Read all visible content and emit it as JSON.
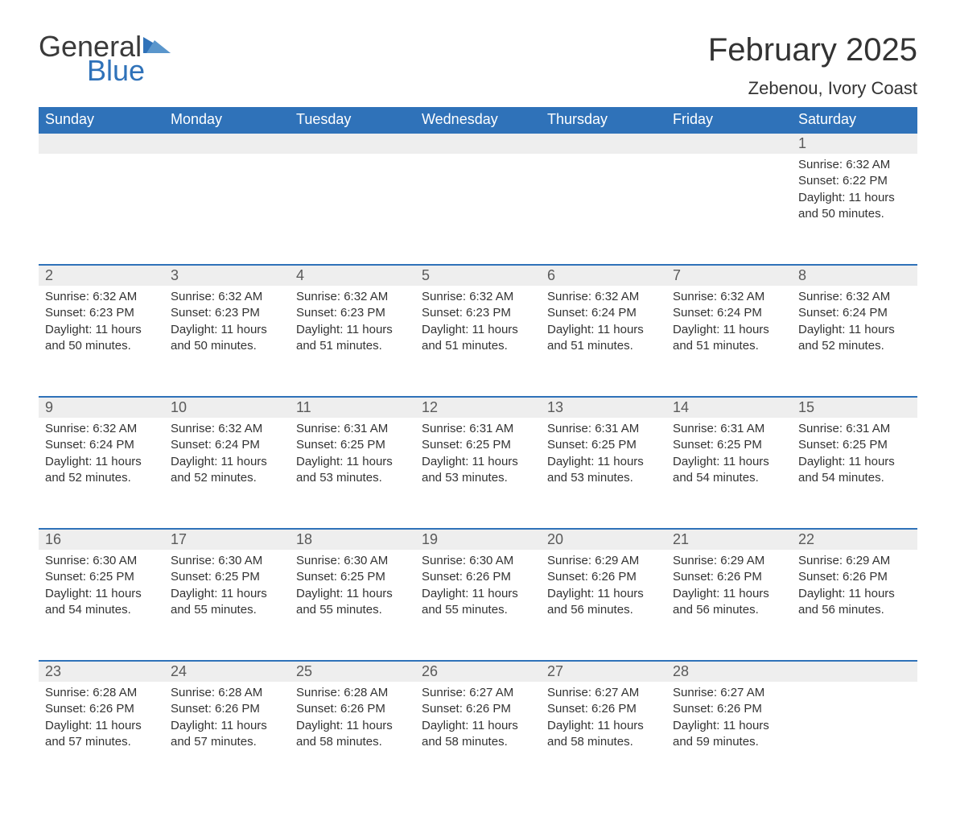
{
  "logo": {
    "general": "General",
    "blue": "Blue",
    "brand_color": "#2f72b9"
  },
  "title": "February 2025",
  "location": "Zebenou, Ivory Coast",
  "colors": {
    "header_bg": "#2f72b9",
    "header_text": "#ffffff",
    "daynum_bg": "#eeeeee",
    "row_divider": "#2f72b9",
    "body_text": "#333333",
    "page_bg": "#ffffff"
  },
  "day_headers": [
    "Sunday",
    "Monday",
    "Tuesday",
    "Wednesday",
    "Thursday",
    "Friday",
    "Saturday"
  ],
  "weeks": [
    [
      null,
      null,
      null,
      null,
      null,
      null,
      {
        "n": "1",
        "sunrise": "6:32 AM",
        "sunset": "6:22 PM",
        "daylight": "11 hours and 50 minutes."
      }
    ],
    [
      {
        "n": "2",
        "sunrise": "6:32 AM",
        "sunset": "6:23 PM",
        "daylight": "11 hours and 50 minutes."
      },
      {
        "n": "3",
        "sunrise": "6:32 AM",
        "sunset": "6:23 PM",
        "daylight": "11 hours and 50 minutes."
      },
      {
        "n": "4",
        "sunrise": "6:32 AM",
        "sunset": "6:23 PM",
        "daylight": "11 hours and 51 minutes."
      },
      {
        "n": "5",
        "sunrise": "6:32 AM",
        "sunset": "6:23 PM",
        "daylight": "11 hours and 51 minutes."
      },
      {
        "n": "6",
        "sunrise": "6:32 AM",
        "sunset": "6:24 PM",
        "daylight": "11 hours and 51 minutes."
      },
      {
        "n": "7",
        "sunrise": "6:32 AM",
        "sunset": "6:24 PM",
        "daylight": "11 hours and 51 minutes."
      },
      {
        "n": "8",
        "sunrise": "6:32 AM",
        "sunset": "6:24 PM",
        "daylight": "11 hours and 52 minutes."
      }
    ],
    [
      {
        "n": "9",
        "sunrise": "6:32 AM",
        "sunset": "6:24 PM",
        "daylight": "11 hours and 52 minutes."
      },
      {
        "n": "10",
        "sunrise": "6:32 AM",
        "sunset": "6:24 PM",
        "daylight": "11 hours and 52 minutes."
      },
      {
        "n": "11",
        "sunrise": "6:31 AM",
        "sunset": "6:25 PM",
        "daylight": "11 hours and 53 minutes."
      },
      {
        "n": "12",
        "sunrise": "6:31 AM",
        "sunset": "6:25 PM",
        "daylight": "11 hours and 53 minutes."
      },
      {
        "n": "13",
        "sunrise": "6:31 AM",
        "sunset": "6:25 PM",
        "daylight": "11 hours and 53 minutes."
      },
      {
        "n": "14",
        "sunrise": "6:31 AM",
        "sunset": "6:25 PM",
        "daylight": "11 hours and 54 minutes."
      },
      {
        "n": "15",
        "sunrise": "6:31 AM",
        "sunset": "6:25 PM",
        "daylight": "11 hours and 54 minutes."
      }
    ],
    [
      {
        "n": "16",
        "sunrise": "6:30 AM",
        "sunset": "6:25 PM",
        "daylight": "11 hours and 54 minutes."
      },
      {
        "n": "17",
        "sunrise": "6:30 AM",
        "sunset": "6:25 PM",
        "daylight": "11 hours and 55 minutes."
      },
      {
        "n": "18",
        "sunrise": "6:30 AM",
        "sunset": "6:25 PM",
        "daylight": "11 hours and 55 minutes."
      },
      {
        "n": "19",
        "sunrise": "6:30 AM",
        "sunset": "6:26 PM",
        "daylight": "11 hours and 55 minutes."
      },
      {
        "n": "20",
        "sunrise": "6:29 AM",
        "sunset": "6:26 PM",
        "daylight": "11 hours and 56 minutes."
      },
      {
        "n": "21",
        "sunrise": "6:29 AM",
        "sunset": "6:26 PM",
        "daylight": "11 hours and 56 minutes."
      },
      {
        "n": "22",
        "sunrise": "6:29 AM",
        "sunset": "6:26 PM",
        "daylight": "11 hours and 56 minutes."
      }
    ],
    [
      {
        "n": "23",
        "sunrise": "6:28 AM",
        "sunset": "6:26 PM",
        "daylight": "11 hours and 57 minutes."
      },
      {
        "n": "24",
        "sunrise": "6:28 AM",
        "sunset": "6:26 PM",
        "daylight": "11 hours and 57 minutes."
      },
      {
        "n": "25",
        "sunrise": "6:28 AM",
        "sunset": "6:26 PM",
        "daylight": "11 hours and 58 minutes."
      },
      {
        "n": "26",
        "sunrise": "6:27 AM",
        "sunset": "6:26 PM",
        "daylight": "11 hours and 58 minutes."
      },
      {
        "n": "27",
        "sunrise": "6:27 AM",
        "sunset": "6:26 PM",
        "daylight": "11 hours and 58 minutes."
      },
      {
        "n": "28",
        "sunrise": "6:27 AM",
        "sunset": "6:26 PM",
        "daylight": "11 hours and 59 minutes."
      },
      null
    ]
  ],
  "labels": {
    "sunrise": "Sunrise:",
    "sunset": "Sunset:",
    "daylight": "Daylight:"
  }
}
